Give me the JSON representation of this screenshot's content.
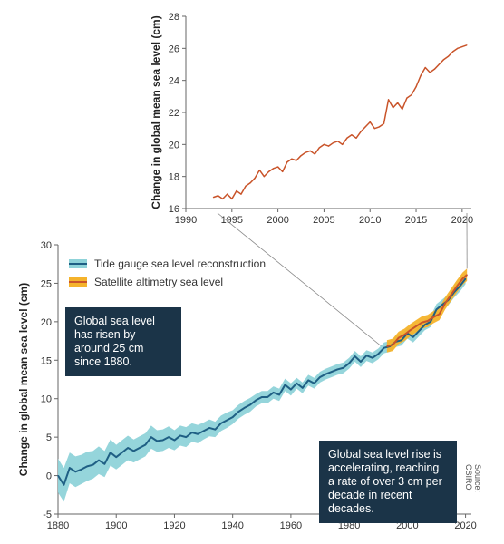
{
  "chart_data": [
    {
      "id": "inset",
      "type": "line",
      "ylabel": "Change in global mean sea level (cm)",
      "xlim": [
        1990,
        2021
      ],
      "ylim": [
        16,
        28
      ],
      "xticks": [
        1990,
        1995,
        2000,
        2005,
        2010,
        2015,
        2020
      ],
      "yticks": [
        16,
        18,
        20,
        22,
        24,
        26,
        28
      ],
      "grid": false,
      "series": [
        {
          "key": "altimetry",
          "color": "#c9542a",
          "x": [
            1993.0,
            1993.5,
            1994.0,
            1994.5,
            1995.0,
            1995.5,
            1996.0,
            1996.5,
            1997.0,
            1997.5,
            1998.0,
            1998.5,
            1999.0,
            1999.5,
            2000.0,
            2000.5,
            2001.0,
            2001.5,
            2002.0,
            2002.5,
            2003.0,
            2003.5,
            2004.0,
            2004.5,
            2005.0,
            2005.5,
            2006.0,
            2006.5,
            2007.0,
            2007.5,
            2008.0,
            2008.5,
            2009.0,
            2009.5,
            2010.0,
            2010.5,
            2011.0,
            2011.5,
            2012.0,
            2012.5,
            2013.0,
            2013.5,
            2014.0,
            2014.5,
            2015.0,
            2015.5,
            2016.0,
            2016.5,
            2017.0,
            2017.5,
            2018.0,
            2018.5,
            2019.0,
            2019.5,
            2020.0,
            2020.5
          ],
          "values": [
            16.7,
            16.8,
            16.6,
            16.9,
            16.6,
            17.1,
            16.9,
            17.4,
            17.6,
            17.9,
            18.4,
            18.0,
            18.3,
            18.5,
            18.6,
            18.3,
            18.9,
            19.1,
            19.0,
            19.3,
            19.5,
            19.6,
            19.4,
            19.8,
            20.0,
            19.9,
            20.1,
            20.2,
            20.0,
            20.4,
            20.6,
            20.4,
            20.8,
            21.1,
            21.4,
            21.0,
            21.1,
            21.3,
            22.8,
            22.3,
            22.6,
            22.2,
            22.9,
            23.1,
            23.6,
            24.3,
            24.8,
            24.5,
            24.7,
            25.0,
            25.3,
            25.5,
            25.8,
            26.0,
            26.1,
            26.2
          ]
        }
      ]
    },
    {
      "id": "main",
      "type": "line",
      "ylabel": "Change in global mean sea level (cm)",
      "xlim": [
        1880,
        2022
      ],
      "ylim": [
        -5,
        30
      ],
      "xticks": [
        1880,
        1900,
        1920,
        1940,
        1960,
        1980,
        2000,
        2020
      ],
      "yticks": [
        -5,
        0,
        5,
        10,
        15,
        20,
        25,
        30
      ],
      "grid": false,
      "legend_position": "top-left",
      "series": [
        {
          "key": "tide",
          "name": "Tide gauge sea level reconstruction",
          "color": "#1f5f84",
          "band_color": "#8fd3d9",
          "x": [
            1880,
            1882,
            1884,
            1886,
            1888,
            1890,
            1892,
            1894,
            1896,
            1898,
            1900,
            1902,
            1904,
            1906,
            1908,
            1910,
            1912,
            1914,
            1916,
            1918,
            1920,
            1922,
            1924,
            1926,
            1928,
            1930,
            1932,
            1934,
            1936,
            1938,
            1940,
            1942,
            1944,
            1946,
            1948,
            1950,
            1952,
            1954,
            1956,
            1958,
            1960,
            1962,
            1964,
            1966,
            1968,
            1970,
            1972,
            1974,
            1976,
            1978,
            1980,
            1982,
            1984,
            1986,
            1988,
            1990,
            1992,
            1994,
            1996,
            1998,
            2000,
            2002,
            2004,
            2006,
            2008,
            2010,
            2012,
            2014,
            2016,
            2018,
            2020
          ],
          "values": [
            0.0,
            -1.2,
            1.0,
            0.5,
            0.8,
            1.2,
            1.4,
            2.0,
            1.5,
            3.0,
            2.4,
            3.0,
            3.6,
            3.2,
            3.6,
            4.0,
            5.0,
            4.5,
            4.6,
            5.0,
            4.6,
            5.2,
            5.0,
            5.6,
            5.4,
            5.8,
            6.2,
            6.0,
            6.8,
            7.2,
            7.6,
            8.3,
            8.8,
            9.2,
            9.8,
            10.2,
            10.2,
            10.8,
            10.5,
            11.8,
            11.2,
            12.0,
            11.4,
            12.4,
            12.0,
            12.8,
            13.2,
            13.5,
            13.8,
            14.0,
            14.6,
            15.5,
            14.8,
            15.6,
            15.3,
            15.8,
            16.6,
            16.8,
            17.4,
            17.6,
            18.5,
            18.0,
            18.8,
            19.6,
            20.0,
            21.6,
            22.2,
            22.8,
            23.8,
            24.6,
            25.6
          ],
          "band_half_width": [
            2.2,
            2.2,
            2.0,
            2.0,
            1.9,
            1.9,
            1.8,
            1.8,
            1.7,
            1.7,
            1.6,
            1.6,
            1.6,
            1.5,
            1.5,
            1.5,
            1.5,
            1.4,
            1.4,
            1.4,
            1.3,
            1.3,
            1.3,
            1.2,
            1.2,
            1.1,
            1.1,
            1.0,
            1.0,
            1.0,
            0.9,
            0.9,
            0.9,
            0.9,
            0.8,
            0.8,
            0.8,
            0.8,
            0.8,
            0.8,
            0.8,
            0.7,
            0.7,
            0.7,
            0.7,
            0.7,
            0.7,
            0.7,
            0.7,
            0.7,
            0.7,
            0.7,
            0.7,
            0.7,
            0.7,
            0.7,
            0.7,
            0.7,
            0.7,
            0.7,
            0.7,
            0.7,
            0.7,
            0.7,
            0.7,
            0.7,
            0.7,
            0.7,
            0.7,
            0.7,
            0.7
          ]
        },
        {
          "key": "satellite",
          "name": "Satellite altimetry sea level",
          "color": "#c9542a",
          "band_color": "#f5b32b",
          "x": [
            1993,
            1995,
            1997,
            1999,
            2001,
            2003,
            2005,
            2007,
            2009,
            2011,
            2013,
            2015,
            2017,
            2019,
            2020.5
          ],
          "values": [
            16.8,
            17.0,
            17.9,
            18.3,
            18.9,
            19.4,
            19.9,
            20.1,
            20.6,
            21.0,
            22.4,
            23.5,
            24.6,
            25.6,
            26.1
          ],
          "band_half_width": [
            0.8,
            0.8,
            0.8,
            0.8,
            0.8,
            0.8,
            0.8,
            0.8,
            0.8,
            0.8,
            0.8,
            0.8,
            0.8,
            0.8,
            0.8
          ]
        }
      ]
    }
  ],
  "legend": {
    "tide": "Tide gauge sea level reconstruction",
    "satellite": "Satellite altimetry sea level"
  },
  "notes": {
    "since_1880": "Global sea level has risen by around 25 cm since 1880.",
    "accelerating": "Global sea level rise is accelerating, reaching a rate of over 3 cm per decade in recent decades."
  },
  "source": "Source: CSIRO",
  "colors": {
    "navy_box": "#1b3448",
    "tide_line": "#1f5f84",
    "tide_band": "#8fd3d9",
    "sat_line": "#c9542a",
    "sat_band": "#f5b32b",
    "axis": "#666666"
  }
}
